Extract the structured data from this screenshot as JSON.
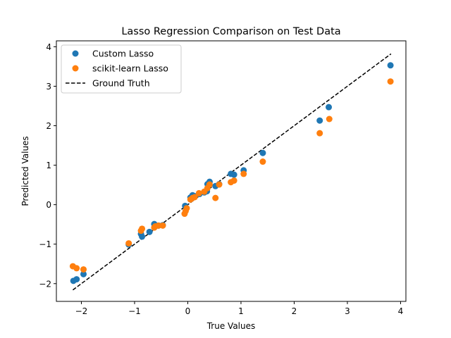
{
  "chart_data": {
    "type": "scatter",
    "title": "Lasso Regression Comparison on Test Data",
    "xlabel": "True Values",
    "ylabel": "Predicted Values",
    "xlim": [
      -2.47,
      4.1
    ],
    "ylim": [
      -2.45,
      4.15
    ],
    "xticks": [
      -2,
      -1,
      0,
      1,
      2,
      3,
      4
    ],
    "yticks": [
      -2,
      -1,
      0,
      1,
      2,
      3,
      4
    ],
    "grid": false,
    "legend": "top-left",
    "series": [
      {
        "name": "Custom Lasso",
        "type": "scatter",
        "color": "#1f77b4",
        "points": [
          [
            -2.15,
            -1.93
          ],
          [
            -2.09,
            -1.89
          ],
          [
            -1.96,
            -1.76
          ],
          [
            -1.11,
            -1.01
          ],
          [
            -0.88,
            -0.74
          ],
          [
            -0.86,
            -0.81
          ],
          [
            -0.72,
            -0.69
          ],
          [
            -0.63,
            -0.49
          ],
          [
            -0.62,
            -0.52
          ],
          [
            -0.55,
            -0.53
          ],
          [
            -0.47,
            -0.52
          ],
          [
            -0.05,
            -0.03
          ],
          [
            0.05,
            0.18
          ],
          [
            0.09,
            0.24
          ],
          [
            0.12,
            0.22
          ],
          [
            0.22,
            0.27
          ],
          [
            0.31,
            0.31
          ],
          [
            0.36,
            0.34
          ],
          [
            0.37,
            0.52
          ],
          [
            0.41,
            0.58
          ],
          [
            0.52,
            0.47
          ],
          [
            0.59,
            0.52
          ],
          [
            0.81,
            0.78
          ],
          [
            0.87,
            0.76
          ],
          [
            1.05,
            0.87
          ],
          [
            1.41,
            1.31
          ],
          [
            2.48,
            2.13
          ],
          [
            2.65,
            2.47
          ],
          [
            3.81,
            3.53
          ]
        ]
      },
      {
        "name": "scikit-learn Lasso",
        "type": "scatter",
        "color": "#ff7f0e",
        "points": [
          [
            -2.16,
            -1.56
          ],
          [
            -2.09,
            -1.61
          ],
          [
            -1.96,
            -1.64
          ],
          [
            -1.11,
            -0.98
          ],
          [
            -0.88,
            -0.66
          ],
          [
            -0.86,
            -0.61
          ],
          [
            -0.63,
            -0.58
          ],
          [
            -0.61,
            -0.55
          ],
          [
            -0.55,
            -0.53
          ],
          [
            -0.47,
            -0.53
          ],
          [
            -0.06,
            -0.23
          ],
          [
            -0.04,
            -0.16
          ],
          [
            -0.02,
            -0.09
          ],
          [
            0.05,
            0.13
          ],
          [
            0.09,
            0.17
          ],
          [
            0.13,
            0.19
          ],
          [
            0.21,
            0.29
          ],
          [
            0.31,
            0.33
          ],
          [
            0.37,
            0.42
          ],
          [
            0.41,
            0.51
          ],
          [
            0.52,
            0.17
          ],
          [
            0.59,
            0.51
          ],
          [
            0.81,
            0.57
          ],
          [
            0.87,
            0.61
          ],
          [
            1.05,
            0.78
          ],
          [
            1.41,
            1.09
          ],
          [
            2.48,
            1.81
          ],
          [
            2.66,
            2.17
          ],
          [
            3.81,
            3.12
          ]
        ]
      },
      {
        "name": "Ground Truth",
        "type": "line",
        "color": "#000000",
        "dash": true,
        "points": [
          [
            -2.16,
            -2.16
          ],
          [
            3.82,
            3.82
          ]
        ]
      }
    ]
  }
}
